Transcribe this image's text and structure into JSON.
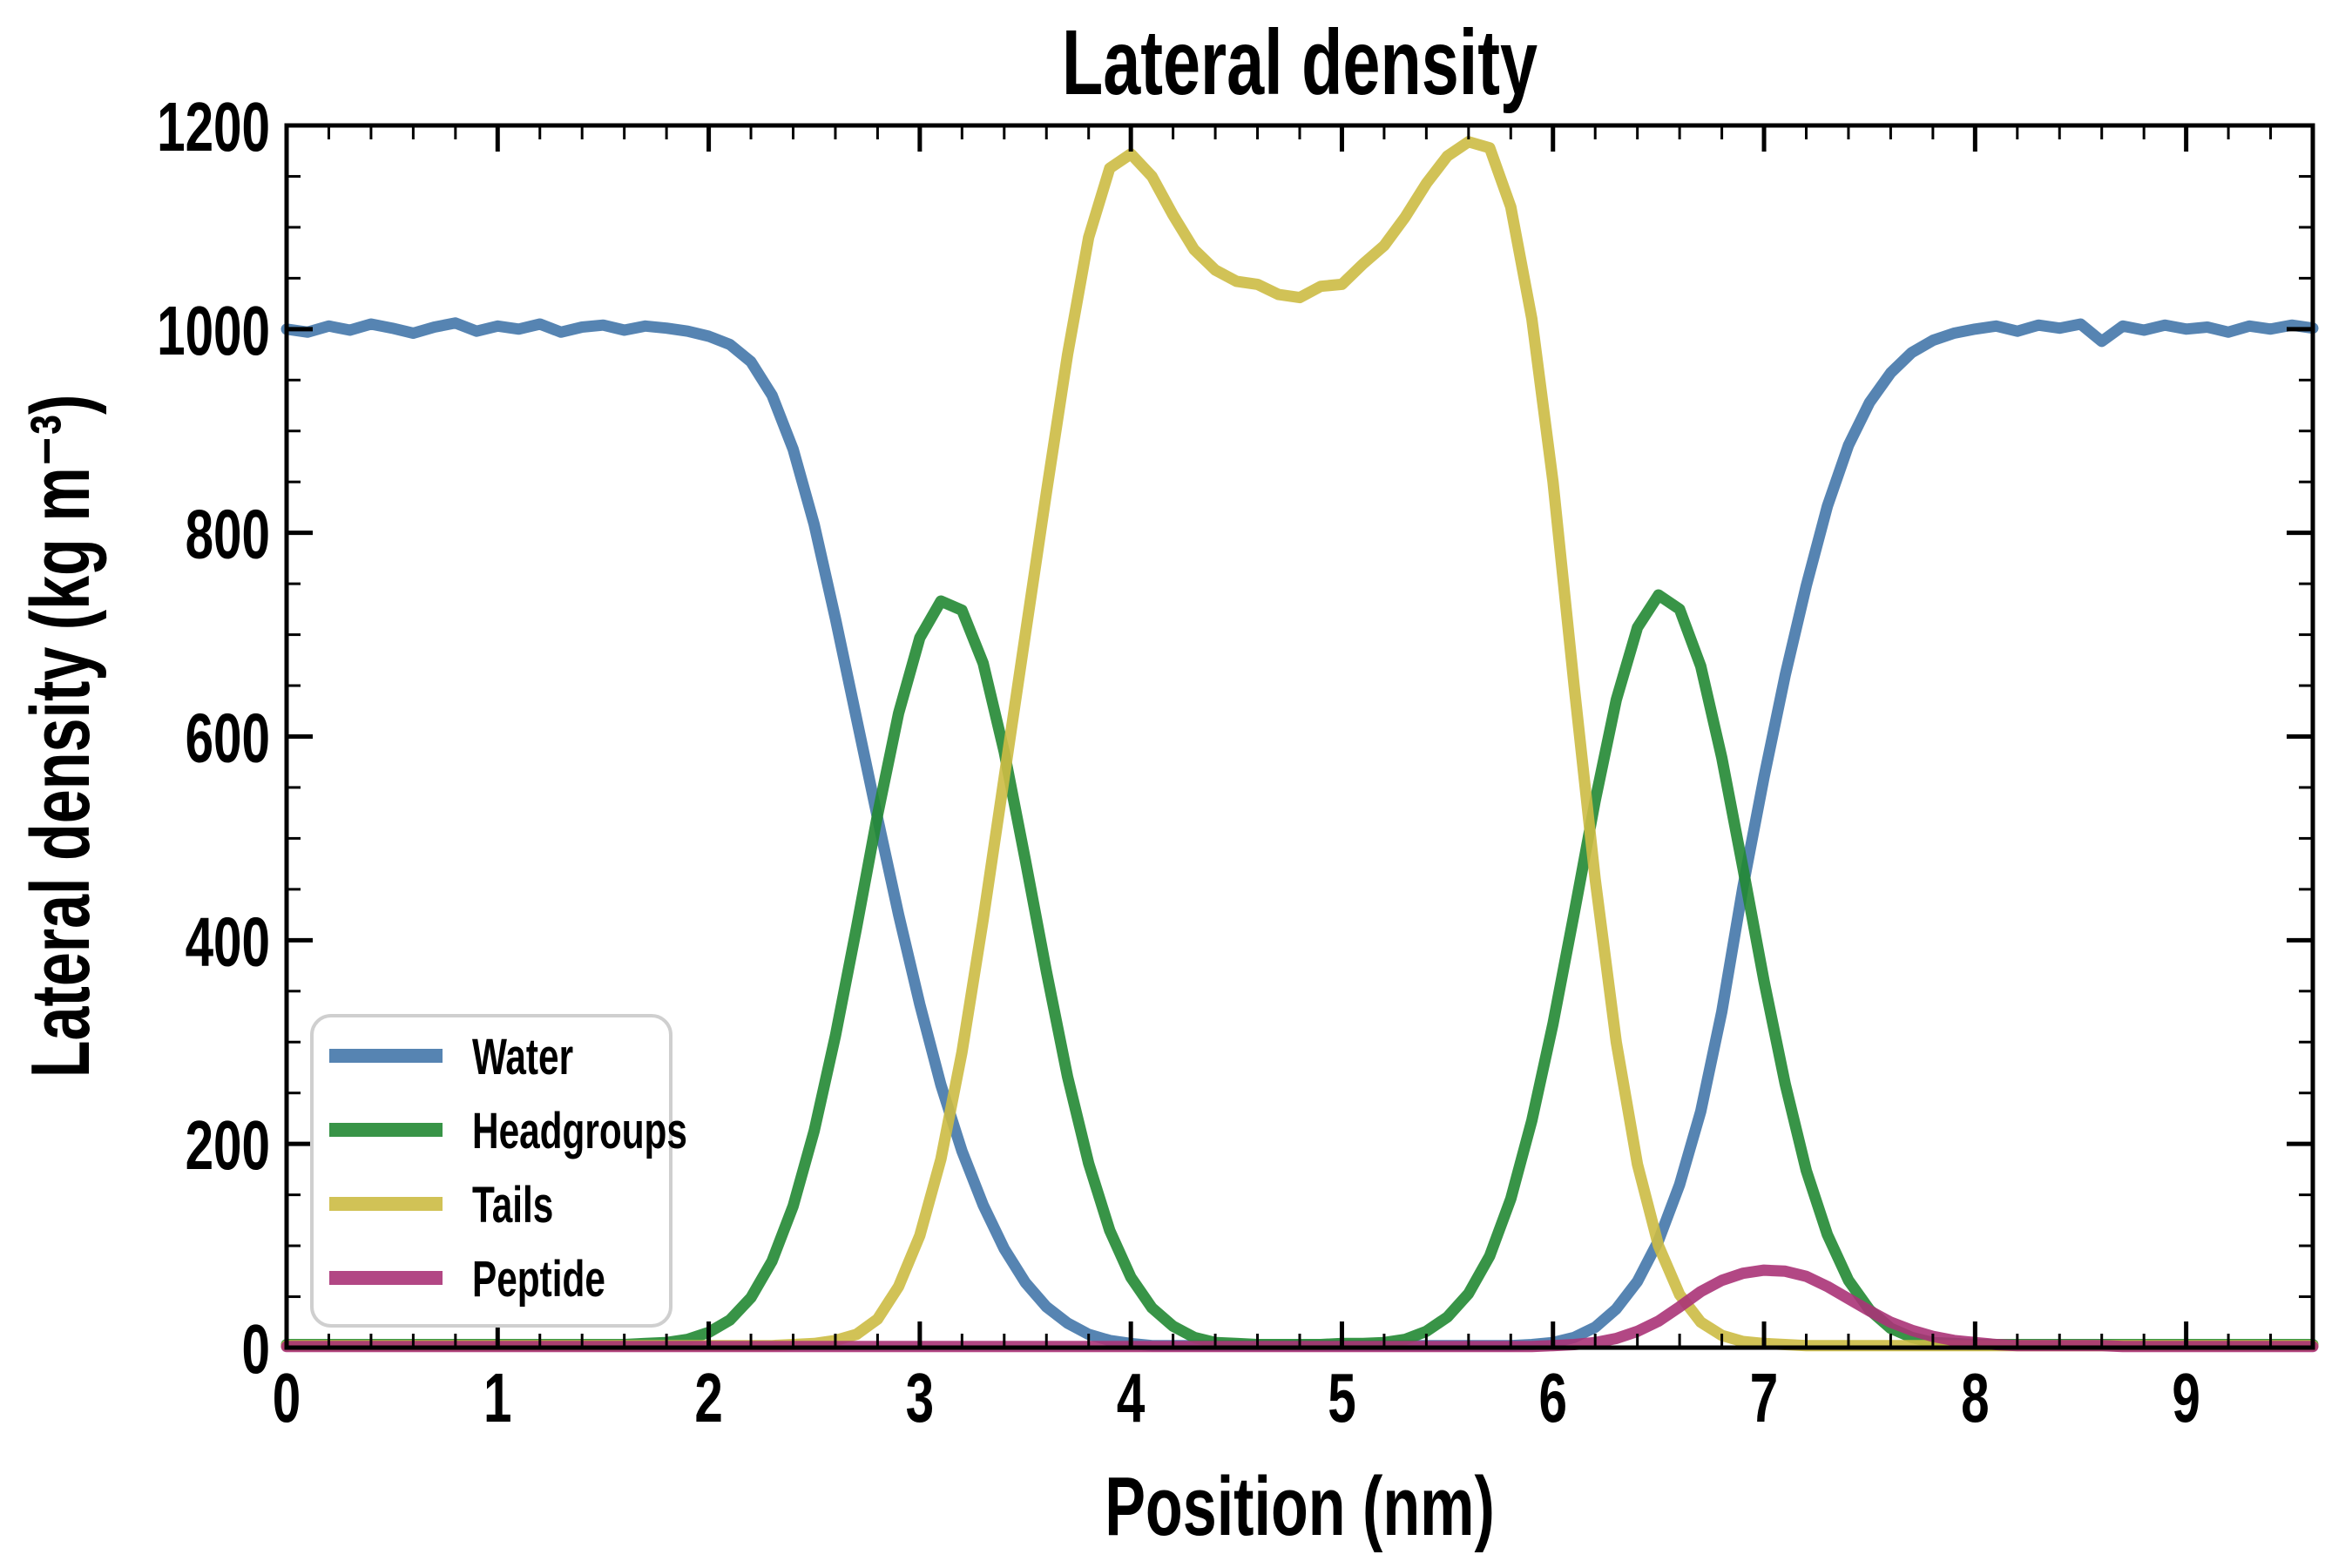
{
  "title": "Lateral density",
  "x_axis": {
    "label": "Position (nm)",
    "ticks": [
      0,
      1,
      2,
      3,
      4,
      5,
      6,
      7,
      8,
      9
    ],
    "minor_step": 0.2,
    "range": [
      0,
      9.6
    ]
  },
  "y_axis": {
    "label": "Lateral density (kg m⁻³)",
    "ticks": [
      0,
      200,
      400,
      600,
      800,
      1000,
      1200
    ],
    "minor_step": 50,
    "range": [
      0,
      1200
    ]
  },
  "legend": {
    "entries": [
      {
        "label": "Water",
        "color": "#4477AA"
      },
      {
        "label": "Headgroups",
        "color": "#228833"
      },
      {
        "label": "Tails",
        "color": "#CCBB44"
      },
      {
        "label": "Peptide",
        "color": "#AA3377"
      }
    ]
  },
  "style": {
    "background": "#ffffff",
    "axis_color": "#000000",
    "legend_border_color": "#cfcfcf",
    "line_opacity": 0.9
  },
  "chart_data": {
    "type": "line",
    "title": "Lateral density",
    "xlabel": "Position (nm)",
    "ylabel": "Lateral density (kg m⁻³)",
    "xlim": [
      0,
      9.6
    ],
    "ylim": [
      0,
      1200
    ],
    "grid": false,
    "legend_position": "lower left",
    "x_start": 0,
    "x_step": 0.1,
    "series": [
      {
        "name": "Water",
        "color": "#4477AA",
        "values": [
          1000,
          997,
          1003,
          999,
          1005,
          1001,
          996,
          1002,
          1006,
          998,
          1003,
          1000,
          1005,
          997,
          1002,
          1004,
          999,
          1003,
          1001,
          998,
          993,
          985,
          968,
          935,
          882,
          808,
          716,
          618,
          520,
          425,
          337,
          258,
          193,
          140,
          97,
          64,
          40,
          24,
          13,
          7,
          4,
          2,
          2,
          2,
          2,
          2,
          2,
          2,
          2,
          2,
          2,
          2,
          2,
          2,
          2,
          2,
          2,
          2,
          2,
          3,
          5,
          10,
          20,
          38,
          65,
          105,
          160,
          232,
          330,
          452,
          560,
          660,
          748,
          826,
          886,
          928,
          957,
          977,
          989,
          996,
          1000,
          1003,
          998,
          1004,
          1001,
          1005,
          988,
          1003,
          999,
          1004,
          1000,
          1002,
          997,
          1003,
          1000,
          1004,
          1001
        ]
      },
      {
        "name": "Headgroups",
        "color": "#228833",
        "values": [
          3,
          3,
          3,
          3,
          3,
          3,
          3,
          3,
          3,
          3,
          3,
          3,
          3,
          3,
          3,
          3,
          3,
          4,
          5,
          8,
          15,
          27,
          49,
          85,
          139,
          213,
          306,
          412,
          523,
          623,
          697,
          733,
          724,
          672,
          585,
          479,
          369,
          266,
          181,
          115,
          69,
          39,
          21,
          10,
          5,
          4,
          3,
          3,
          3,
          3,
          4,
          4,
          5,
          8,
          16,
          30,
          53,
          90,
          146,
          223,
          318,
          426,
          537,
          636,
          707,
          739,
          725,
          669,
          579,
          471,
          360,
          259,
          174,
          111,
          66,
          37,
          19,
          10,
          5,
          4,
          3,
          3,
          3,
          3,
          3,
          3,
          3,
          3,
          3,
          3,
          3,
          3,
          3,
          3,
          3,
          3,
          3
        ]
      },
      {
        "name": "Tails",
        "color": "#CCBB44",
        "values": [
          2,
          2,
          2,
          2,
          2,
          2,
          2,
          2,
          2,
          2,
          2,
          2,
          2,
          2,
          2,
          2,
          2,
          2,
          2,
          2,
          2,
          2,
          2,
          2,
          3,
          4,
          7,
          13,
          28,
          60,
          110,
          185,
          290,
          420,
          560,
          700,
          840,
          975,
          1090,
          1158,
          1172,
          1150,
          1112,
          1078,
          1058,
          1047,
          1044,
          1034,
          1031,
          1042,
          1044,
          1064,
          1082,
          1110,
          1143,
          1170,
          1184,
          1178,
          1120,
          1010,
          850,
          650,
          460,
          300,
          180,
          100,
          52,
          25,
          12,
          6,
          4,
          3,
          2,
          2,
          2,
          2,
          2,
          2,
          2,
          2,
          2,
          2,
          2,
          2,
          2,
          2,
          2,
          2,
          2,
          2,
          2,
          2,
          2,
          2,
          2,
          2,
          2
        ]
      },
      {
        "name": "Peptide",
        "color": "#AA3377",
        "values": [
          1,
          1,
          1,
          1,
          1,
          1,
          1,
          1,
          1,
          1,
          1,
          1,
          1,
          1,
          1,
          1,
          1,
          1,
          1,
          1,
          1,
          1,
          1,
          1,
          1,
          1,
          1,
          1,
          1,
          1,
          1,
          1,
          1,
          1,
          1,
          1,
          1,
          1,
          1,
          1,
          1,
          1,
          1,
          1,
          1,
          1,
          1,
          1,
          1,
          1,
          1,
          1,
          1,
          1,
          1,
          1,
          1,
          1,
          1,
          1,
          2,
          3,
          5,
          9,
          16,
          26,
          40,
          55,
          66,
          73,
          76,
          75,
          70,
          60,
          48,
          36,
          25,
          17,
          11,
          7,
          5,
          3,
          2,
          2,
          2,
          2,
          2,
          1,
          1,
          1,
          1,
          1,
          1,
          1,
          1,
          1,
          1
        ]
      }
    ]
  }
}
